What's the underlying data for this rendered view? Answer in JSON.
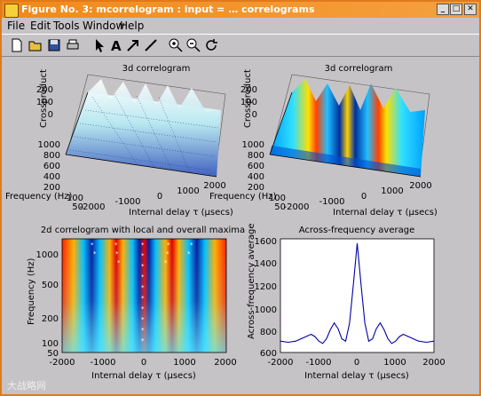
{
  "window": {
    "title": "Figure No. 3: mcorrelogram : input = … correlograms",
    "min_label": "_",
    "max_label": "□",
    "close_label": "✕"
  },
  "menu": {
    "items": [
      "File",
      "Edit",
      "Tools",
      "Window",
      "Help"
    ]
  },
  "toolbar": {
    "icons": [
      "new-file-icon",
      "open-folder-icon",
      "save-icon",
      "print-icon",
      "pointer-icon",
      "text-tool-icon",
      "arrow-tool-icon",
      "line-tool-icon",
      "zoom-in-icon",
      "zoom-out-icon",
      "rotate-icon"
    ],
    "text_tool_glyph": "A"
  },
  "plots": {
    "tl": {
      "title": "3d correlogram",
      "zlabel": "Crossproduct",
      "ylabel": "Frequency (Hz)",
      "xlabel": "Internal delay τ (μsecs)",
      "z_ticks": [
        "200",
        "100",
        "0"
      ],
      "y_ticks": [
        "1000",
        "800",
        "600",
        "400",
        "200",
        "100",
        "50"
      ],
      "x_ticks": [
        "-2000",
        "-1000",
        "0",
        "1000",
        "2000"
      ]
    },
    "tr": {
      "title": "3d correlogram",
      "zlabel": "Crossproduct",
      "ylabel": "Frequency (Hz)",
      "xlabel": "Internal delay τ (μsecs)",
      "z_ticks": [
        "200",
        "100",
        "0"
      ],
      "y_ticks": [
        "1000",
        "800",
        "600",
        "400",
        "200",
        "100",
        "50"
      ],
      "x_ticks": [
        "-2000",
        "-1000",
        "0",
        "1000",
        "2000"
      ]
    },
    "bl": {
      "title": "2d correlogram with local and overall maxima",
      "ylabel": "Frequency (Hz)",
      "xlabel": "Internal delay τ (μsecs)",
      "y_ticks": [
        "1000",
        "500",
        "200",
        "100",
        "50"
      ],
      "x_ticks": [
        "-2000",
        "-1000",
        "0",
        "1000",
        "2000"
      ]
    },
    "br": {
      "title": "Across-frequency average",
      "ylabel": "Across-frequency average",
      "xlabel": "Internal delay τ (μsecs)",
      "y_ticks": [
        "1600",
        "1400",
        "1200",
        "1000",
        "800",
        "600"
      ],
      "x_ticks": [
        "-2000",
        "-1000",
        "0",
        "1000",
        "2000"
      ]
    }
  },
  "watermark": "大战略网",
  "chart_data": [
    {
      "type": "line",
      "title": "Across-frequency average",
      "xlabel": "Internal delay τ (μsecs)",
      "ylabel": "Across-frequency average",
      "xlim": [
        -2000,
        2000
      ],
      "ylim": [
        600,
        1600
      ],
      "x": [
        -2000,
        -1800,
        -1600,
        -1400,
        -1200,
        -1100,
        -1000,
        -900,
        -800,
        -700,
        -600,
        -500,
        -400,
        -300,
        -200,
        -100,
        0,
        100,
        200,
        300,
        400,
        500,
        600,
        700,
        800,
        900,
        1000,
        1100,
        1200,
        1400,
        1600,
        1800,
        2000
      ],
      "y": [
        700,
        690,
        700,
        730,
        760,
        740,
        700,
        680,
        720,
        800,
        860,
        810,
        720,
        700,
        860,
        1200,
        1560,
        1200,
        860,
        700,
        720,
        810,
        860,
        800,
        720,
        680,
        700,
        740,
        760,
        730,
        700,
        690,
        700
      ],
      "color": "#0000aa"
    }
  ]
}
